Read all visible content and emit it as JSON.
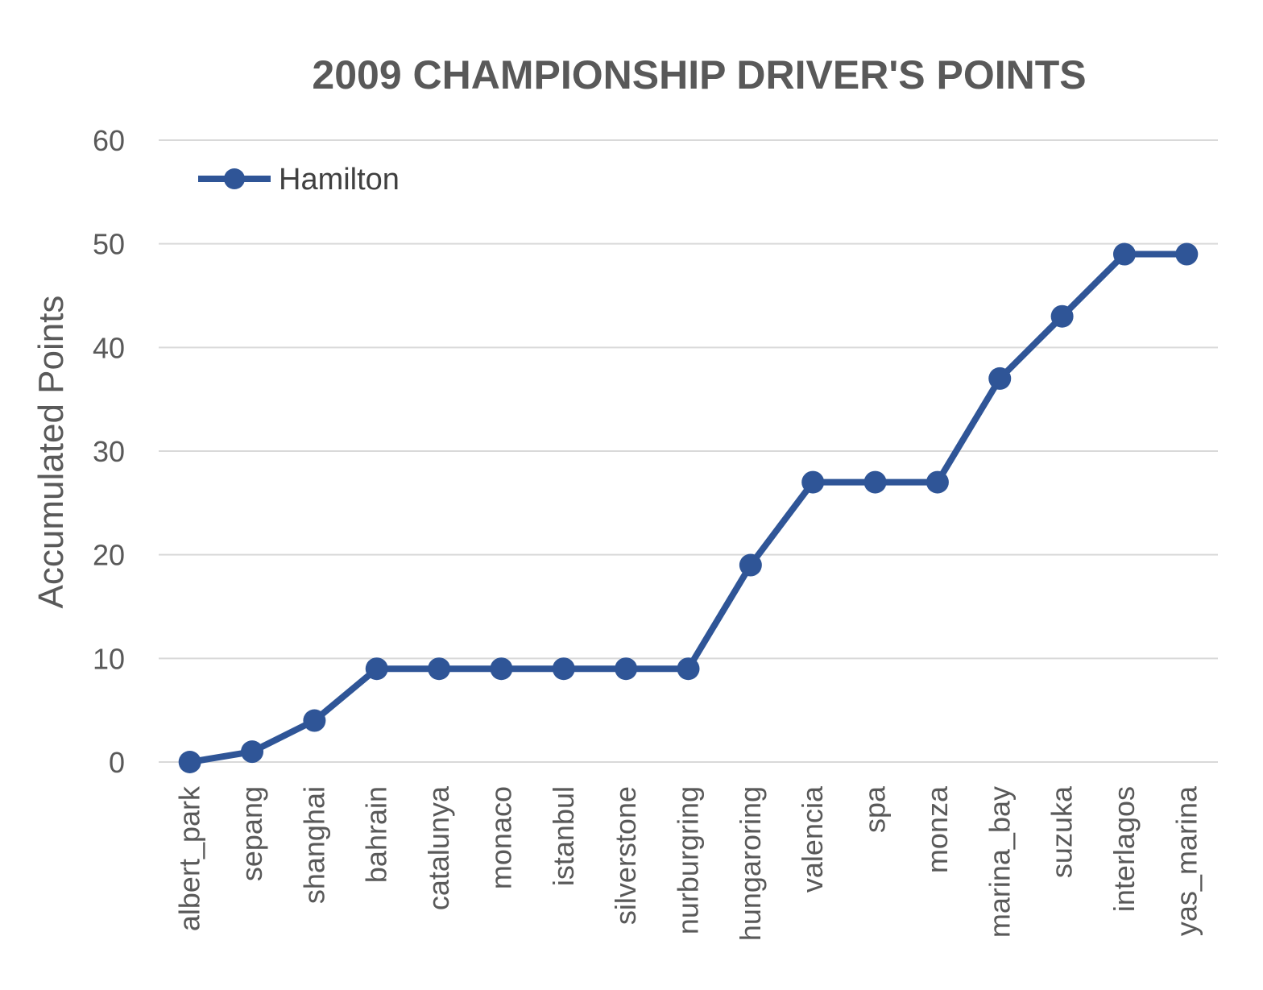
{
  "chart_data": {
    "type": "line",
    "title": "2009 CHAMPIONSHIP DRIVER'S POINTS",
    "xlabel": "",
    "ylabel": "Accumulated Points",
    "ylim": [
      0,
      60
    ],
    "yticks": [
      0,
      10,
      20,
      30,
      40,
      50,
      60
    ],
    "grid": true,
    "legend_position": "top-left",
    "categories": [
      "albert_park",
      "sepang",
      "shanghai",
      "bahrain",
      "catalunya",
      "monaco",
      "istanbul",
      "silverstone",
      "nurburgring",
      "hungaroring",
      "valencia",
      "spa",
      "monza",
      "marina_bay",
      "suzuka",
      "interlagos",
      "yas_marina"
    ],
    "series": [
      {
        "name": "Hamilton",
        "color": "#2f5597",
        "marker": "circle",
        "values": [
          0,
          1,
          4,
          9,
          9,
          9,
          9,
          9,
          9,
          19,
          27,
          27,
          27,
          37,
          43,
          49,
          49
        ]
      }
    ]
  }
}
